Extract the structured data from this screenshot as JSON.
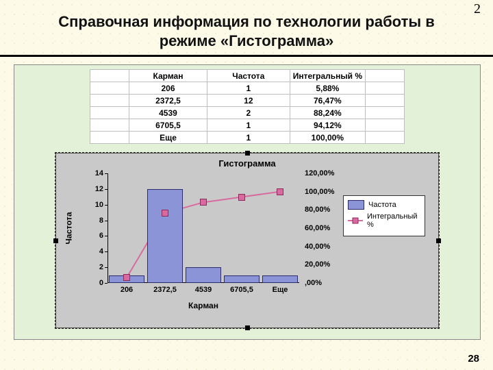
{
  "page_corner_small": "2",
  "page_number": "28",
  "title_line1": "Справочная информация по технологии работы в",
  "title_line2": "режиме «Гистограмма»",
  "table": {
    "headers": [
      "Карман",
      "Частота",
      "Интегральный %"
    ],
    "rows": [
      [
        "206",
        "1",
        "5,88%"
      ],
      [
        "2372,5",
        "12",
        "76,47%"
      ],
      [
        "4539",
        "2",
        "88,24%"
      ],
      [
        "6705,5",
        "1",
        "94,12%"
      ],
      [
        "Еще",
        "1",
        "100,00%"
      ]
    ]
  },
  "chart": {
    "type": "bar+line",
    "title": "Гистограмма",
    "xlabel": "Карман",
    "ylabel": "Частота",
    "categories": [
      "206",
      "2372,5",
      "4539",
      "6705,5",
      "Еще"
    ],
    "bar_values": [
      1,
      12,
      2,
      1,
      1
    ],
    "bar_color": "#8a94d6",
    "bar_border": "#2b2b6b",
    "line_values_pct": [
      5.88,
      76.47,
      88.24,
      94.12,
      100.0
    ],
    "line_color": "#d86aa0",
    "yleft": {
      "min": 0,
      "max": 14,
      "step": 2
    },
    "yright": {
      "min": 0,
      "max": 120,
      "step": 20,
      "tick_labels": [
        ",00%",
        "20,00%",
        "40,00%",
        "60,00%",
        "80,00%",
        "100,00%",
        "120,00%"
      ]
    },
    "legend": {
      "series1": "Частота",
      "series2": "Интегральный %"
    },
    "plot_bg": "#c9c9c9",
    "title_fontsize": 13,
    "label_fontsize": 12,
    "tick_fontsize": 11
  }
}
